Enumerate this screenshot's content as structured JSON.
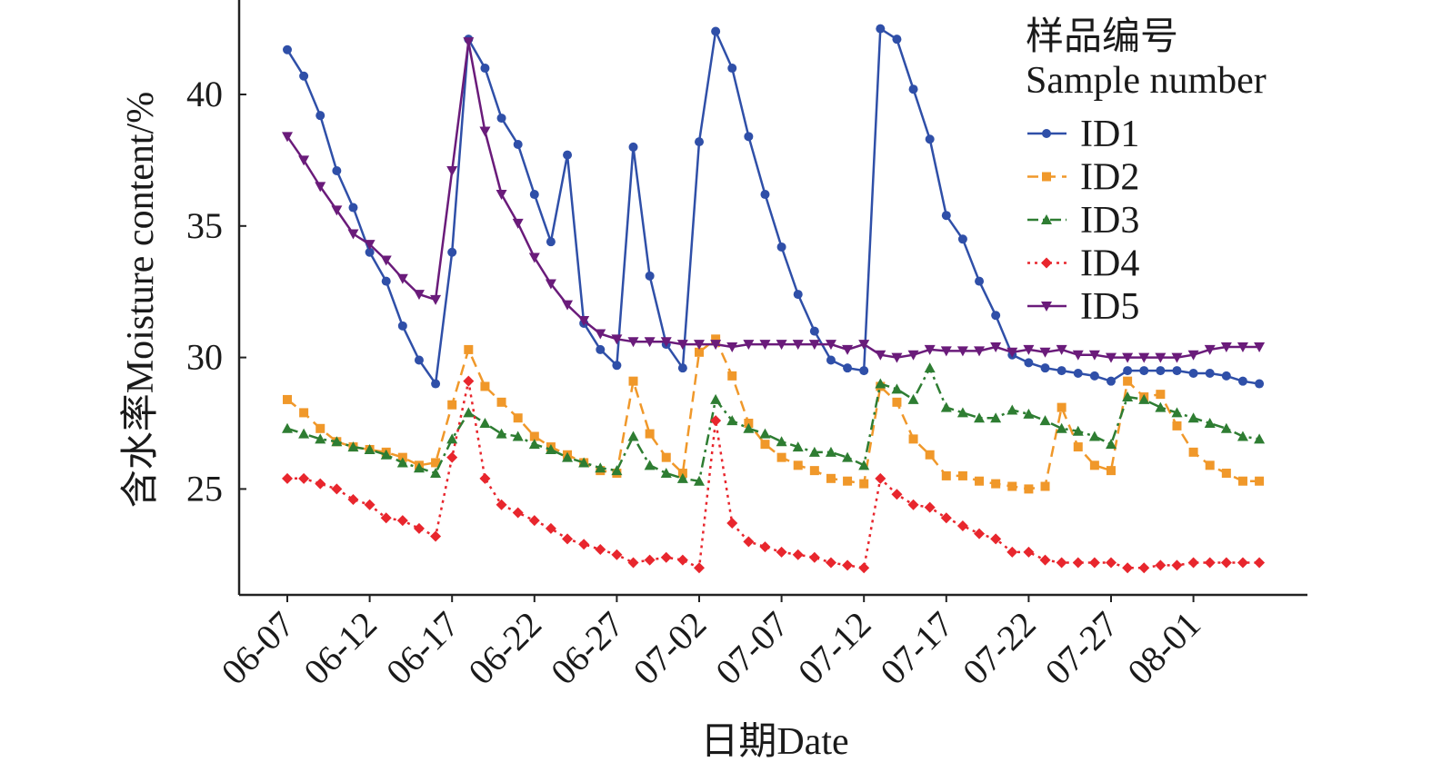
{
  "chart_data": {
    "type": "line",
    "title": "",
    "xlabel": "日期Date",
    "ylabel": "含水率Moisture content/%",
    "ylim": [
      21,
      43.6
    ],
    "yticks": [
      25,
      30,
      35,
      40
    ],
    "xtick_labels": [
      "06-07",
      "06-12",
      "06-17",
      "06-22",
      "06-27",
      "07-02",
      "07-07",
      "07-12",
      "07-17",
      "07-22",
      "07-27",
      "08-01"
    ],
    "x_start": "06-07",
    "x_end": "08-05",
    "x_step_days": 1,
    "grid": false,
    "legend": {
      "title_cn": "样品编号",
      "title_en": "Sample number",
      "placement": "top-right"
    },
    "series": [
      {
        "name": "ID1",
        "color": "#2f4fa8",
        "marker": "circle",
        "dash": "solid",
        "values": [
          41.7,
          40.7,
          39.2,
          37.1,
          35.7,
          34.0,
          32.9,
          31.2,
          29.9,
          29.0,
          34.0,
          42.1,
          41.0,
          39.1,
          38.1,
          36.2,
          34.4,
          37.7,
          31.3,
          30.3,
          29.7,
          38.0,
          33.1,
          30.5,
          29.6,
          38.2,
          42.4,
          41.0,
          38.4,
          36.2,
          34.2,
          32.4,
          31.0,
          29.9,
          29.6,
          29.5,
          42.5,
          42.1,
          40.2,
          38.3,
          35.4,
          34.5,
          32.9,
          31.6,
          30.1,
          29.8,
          29.6,
          29.5,
          29.4,
          29.3,
          29.1,
          29.5,
          29.5,
          29.5,
          29.5,
          29.4,
          29.4,
          29.3,
          29.1,
          29.0
        ]
      },
      {
        "name": "ID2",
        "color": "#f0982a",
        "marker": "square",
        "dash": "dashed",
        "values": [
          28.4,
          27.9,
          27.3,
          26.8,
          26.6,
          26.5,
          26.4,
          26.2,
          25.9,
          26.0,
          28.2,
          30.3,
          28.9,
          28.3,
          27.7,
          27.0,
          26.6,
          26.3,
          26.0,
          25.7,
          25.6,
          29.1,
          27.1,
          26.2,
          25.6,
          30.2,
          30.7,
          29.3,
          27.5,
          26.7,
          26.2,
          25.9,
          25.7,
          25.4,
          25.3,
          25.2,
          28.9,
          28.3,
          26.9,
          26.3,
          25.5,
          25.5,
          25.3,
          25.2,
          25.1,
          25.0,
          25.1,
          28.1,
          26.6,
          25.9,
          25.7,
          29.1,
          28.5,
          28.6,
          27.4,
          26.4,
          25.9,
          25.6,
          25.3,
          25.3
        ]
      },
      {
        "name": "ID3",
        "color": "#2e7d32",
        "marker": "triangle-up",
        "dash": "dashdot",
        "values": [
          27.3,
          27.1,
          26.9,
          26.8,
          26.6,
          26.5,
          26.3,
          26.0,
          25.8,
          25.6,
          26.9,
          27.9,
          27.5,
          27.1,
          27.0,
          26.7,
          26.5,
          26.2,
          26.0,
          25.8,
          25.7,
          27.0,
          25.9,
          25.6,
          25.4,
          25.3,
          28.4,
          27.6,
          27.3,
          27.1,
          26.8,
          26.6,
          26.4,
          26.4,
          26.2,
          25.9,
          29.0,
          28.8,
          28.4,
          29.6,
          28.1,
          27.9,
          27.7,
          27.7,
          28.0,
          27.85,
          27.6,
          27.3,
          27.2,
          27.0,
          26.7,
          28.5,
          28.4,
          28.1,
          27.9,
          27.7,
          27.5,
          27.3,
          27.0,
          26.9
        ]
      },
      {
        "name": "ID4",
        "color": "#e8262d",
        "marker": "diamond",
        "dash": "dotted",
        "values": [
          25.4,
          25.4,
          25.2,
          25.0,
          24.6,
          24.4,
          23.9,
          23.8,
          23.5,
          23.2,
          26.2,
          29.1,
          25.4,
          24.4,
          24.1,
          23.8,
          23.5,
          23.1,
          22.9,
          22.7,
          22.5,
          22.2,
          22.3,
          22.4,
          22.3,
          22.0,
          27.6,
          23.7,
          23.0,
          22.8,
          22.6,
          22.5,
          22.4,
          22.2,
          22.1,
          22.0,
          25.4,
          24.8,
          24.4,
          24.3,
          23.9,
          23.6,
          23.3,
          23.1,
          22.6,
          22.6,
          22.3,
          22.2,
          22.2,
          22.2,
          22.2,
          22.0,
          22.0,
          22.1,
          22.1,
          22.2,
          22.2,
          22.2,
          22.2,
          22.2
        ]
      },
      {
        "name": "ID5",
        "color": "#6a1b7a",
        "marker": "triangle-down",
        "dash": "solid",
        "values": [
          38.4,
          37.5,
          36.5,
          35.6,
          34.7,
          34.3,
          33.7,
          33.0,
          32.4,
          32.2,
          37.1,
          42.0,
          38.6,
          36.2,
          35.1,
          33.8,
          32.8,
          32.0,
          31.4,
          30.9,
          30.7,
          30.6,
          30.6,
          30.6,
          30.5,
          30.5,
          30.5,
          30.4,
          30.5,
          30.5,
          30.5,
          30.5,
          30.5,
          30.5,
          30.3,
          30.5,
          30.1,
          30.0,
          30.1,
          30.3,
          30.25,
          30.25,
          30.25,
          30.4,
          30.2,
          30.3,
          30.2,
          30.3,
          30.1,
          30.1,
          30.0,
          30.0,
          30.0,
          30.0,
          30.0,
          30.1,
          30.3,
          30.4,
          30.4,
          30.4
        ]
      }
    ]
  }
}
